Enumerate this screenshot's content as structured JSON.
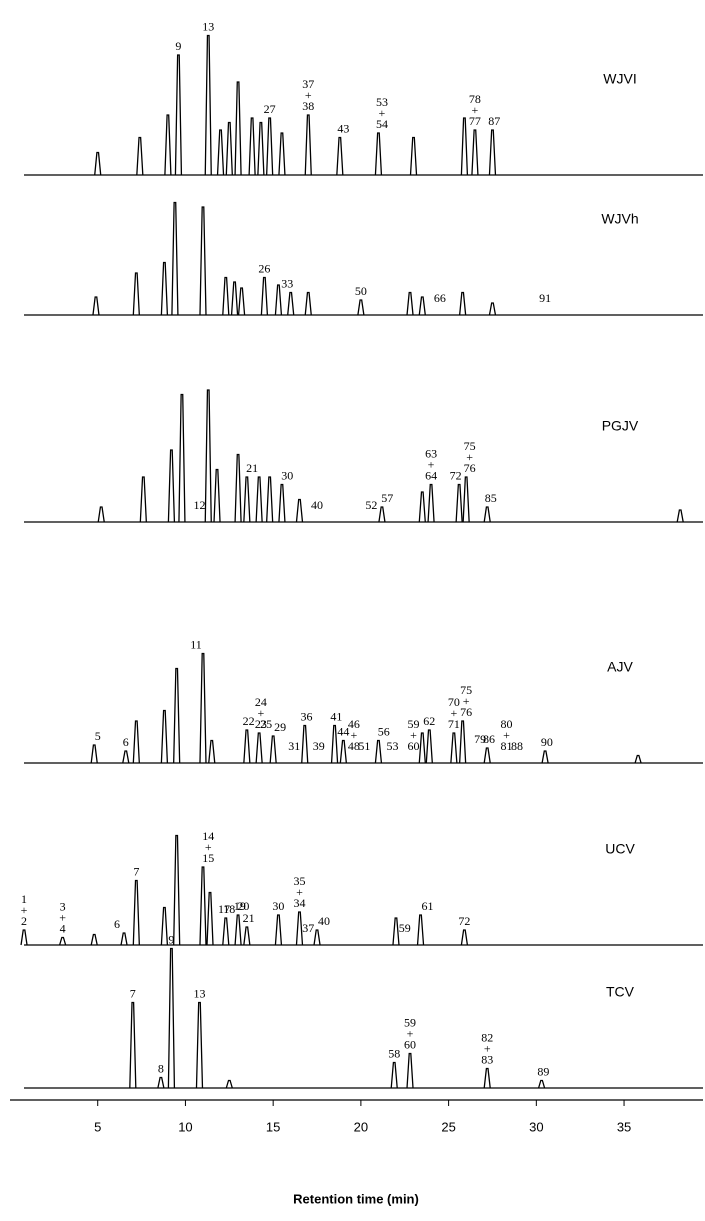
{
  "chart_data": {
    "type": "chromatogram",
    "xlabel": "Retention time (min)",
    "xlim": [
      0,
      39.5
    ],
    "xticks": [
      5,
      10,
      15,
      20,
      25,
      30,
      35
    ],
    "ylim": [
      0,
      100
    ],
    "color": "#000000",
    "panels": [
      {
        "name": "WJVI",
        "peaks": [
          {
            "x": 5.0,
            "height": 15
          },
          {
            "x": 7.4,
            "height": 25
          },
          {
            "x": 9.0,
            "height": 40
          },
          {
            "x": 9.6,
            "height": 80
          },
          {
            "x": 11.3,
            "height": 93
          },
          {
            "x": 12.0,
            "height": 30
          },
          {
            "x": 12.5,
            "height": 35
          },
          {
            "x": 13.0,
            "height": 62
          },
          {
            "x": 13.8,
            "height": 38
          },
          {
            "x": 14.3,
            "height": 35
          },
          {
            "x": 14.8,
            "height": 38
          },
          {
            "x": 15.5,
            "height": 28
          },
          {
            "x": 17.0,
            "height": 40
          },
          {
            "x": 18.8,
            "height": 25
          },
          {
            "x": 21.0,
            "height": 28
          },
          {
            "x": 23.0,
            "height": 25
          },
          {
            "x": 25.9,
            "height": 38
          },
          {
            "x": 26.5,
            "height": 30
          },
          {
            "x": 27.5,
            "height": 30
          }
        ],
        "labels": [
          {
            "x": 9.6,
            "lines": [
              "9"
            ]
          },
          {
            "x": 11.3,
            "lines": [
              "13"
            ]
          },
          {
            "x": 14.8,
            "lines": [
              "27"
            ]
          },
          {
            "x": 17.0,
            "lines": [
              "37",
              "+",
              "38"
            ]
          },
          {
            "x": 19.0,
            "lines": [
              "43"
            ]
          },
          {
            "x": 21.2,
            "lines": [
              "53",
              "+",
              "54"
            ]
          },
          {
            "x": 26.5,
            "lines": [
              "78",
              "+",
              "77"
            ]
          },
          {
            "x": 27.6,
            "lines": [
              "87"
            ]
          }
        ]
      },
      {
        "name": "WJVh",
        "peaks": [
          {
            "x": 4.9,
            "height": 12
          },
          {
            "x": 7.2,
            "height": 28
          },
          {
            "x": 8.8,
            "height": 35
          },
          {
            "x": 9.4,
            "height": 75
          },
          {
            "x": 11.0,
            "height": 72
          },
          {
            "x": 12.3,
            "height": 25
          },
          {
            "x": 12.8,
            "height": 22
          },
          {
            "x": 13.2,
            "height": 18
          },
          {
            "x": 14.5,
            "height": 25
          },
          {
            "x": 15.3,
            "height": 20
          },
          {
            "x": 16.0,
            "height": 15
          },
          {
            "x": 17.0,
            "height": 15
          },
          {
            "x": 20.0,
            "height": 10
          },
          {
            "x": 22.8,
            "height": 15
          },
          {
            "x": 23.5,
            "height": 12
          },
          {
            "x": 25.8,
            "height": 15
          },
          {
            "x": 27.5,
            "height": 8
          }
        ],
        "labels": [
          {
            "x": 14.5,
            "lines": [
              "26"
            ]
          },
          {
            "x": 15.8,
            "lines": [
              "33"
            ]
          },
          {
            "x": 20.0,
            "lines": [
              "50"
            ]
          },
          {
            "x": 24.5,
            "lines": [
              "66"
            ]
          },
          {
            "x": 30.5,
            "lines": [
              "91"
            ]
          }
        ]
      },
      {
        "name": "PGJV",
        "peaks": [
          {
            "x": 5.2,
            "height": 10
          },
          {
            "x": 7.6,
            "height": 30
          },
          {
            "x": 9.2,
            "height": 48
          },
          {
            "x": 9.8,
            "height": 85
          },
          {
            "x": 11.3,
            "height": 88
          },
          {
            "x": 11.8,
            "height": 35
          },
          {
            "x": 13.0,
            "height": 45
          },
          {
            "x": 13.5,
            "height": 30
          },
          {
            "x": 14.2,
            "height": 30
          },
          {
            "x": 14.8,
            "height": 30
          },
          {
            "x": 15.5,
            "height": 25
          },
          {
            "x": 16.5,
            "height": 15
          },
          {
            "x": 21.2,
            "height": 10
          },
          {
            "x": 23.5,
            "height": 20
          },
          {
            "x": 24.0,
            "height": 25
          },
          {
            "x": 25.6,
            "height": 25
          },
          {
            "x": 26.0,
            "height": 30
          },
          {
            "x": 27.2,
            "height": 10
          },
          {
            "x": 38.2,
            "height": 8
          }
        ],
        "labels": [
          {
            "x": 10.8,
            "lines": [
              "12"
            ]
          },
          {
            "x": 13.8,
            "lines": [
              "21"
            ]
          },
          {
            "x": 15.8,
            "lines": [
              "30"
            ]
          },
          {
            "x": 17.5,
            "lines": [
              "40"
            ]
          },
          {
            "x": 20.6,
            "lines": [
              "52"
            ]
          },
          {
            "x": 21.5,
            "lines": [
              "57"
            ]
          },
          {
            "x": 24.0,
            "lines": [
              "63",
              "+",
              "64"
            ]
          },
          {
            "x": 25.4,
            "lines": [
              "72"
            ]
          },
          {
            "x": 26.2,
            "lines": [
              "75",
              "+",
              "76"
            ]
          },
          {
            "x": 27.4,
            "lines": [
              "85"
            ]
          }
        ]
      },
      {
        "name": "AJV",
        "peaks": [
          {
            "x": 4.8,
            "height": 12
          },
          {
            "x": 6.6,
            "height": 8
          },
          {
            "x": 7.2,
            "height": 28
          },
          {
            "x": 8.8,
            "height": 35
          },
          {
            "x": 9.5,
            "height": 63
          },
          {
            "x": 11.0,
            "height": 73
          },
          {
            "x": 11.5,
            "height": 15
          },
          {
            "x": 13.5,
            "height": 22
          },
          {
            "x": 14.2,
            "height": 20
          },
          {
            "x": 15.0,
            "height": 18
          },
          {
            "x": 16.8,
            "height": 25
          },
          {
            "x": 18.5,
            "height": 25
          },
          {
            "x": 19.0,
            "height": 15
          },
          {
            "x": 21.0,
            "height": 15
          },
          {
            "x": 23.5,
            "height": 20
          },
          {
            "x": 23.9,
            "height": 22
          },
          {
            "x": 25.3,
            "height": 20
          },
          {
            "x": 25.8,
            "height": 28
          },
          {
            "x": 27.2,
            "height": 10
          },
          {
            "x": 30.5,
            "height": 8
          },
          {
            "x": 35.8,
            "height": 5
          }
        ],
        "labels": [
          {
            "x": 5.0,
            "lines": [
              "5"
            ]
          },
          {
            "x": 6.6,
            "lines": [
              "6"
            ]
          },
          {
            "x": 10.6,
            "lines": [
              "11"
            ]
          },
          {
            "x": 13.6,
            "lines": [
              "22"
            ]
          },
          {
            "x": 14.3,
            "lines": [
              "24",
              "+",
              "23"
            ]
          },
          {
            "x": 14.6,
            "lines": [
              "25"
            ]
          },
          {
            "x": 15.4,
            "lines": [
              "29"
            ]
          },
          {
            "x": 16.2,
            "lines": [
              "31"
            ]
          },
          {
            "x": 16.9,
            "lines": [
              "36"
            ]
          },
          {
            "x": 17.6,
            "lines": [
              "39"
            ]
          },
          {
            "x": 18.6,
            "lines": [
              "41"
            ]
          },
          {
            "x": 19.0,
            "lines": [
              "44"
            ]
          },
          {
            "x": 19.6,
            "lines": [
              "46",
              "+",
              "48"
            ]
          },
          {
            "x": 20.2,
            "lines": [
              "51"
            ]
          },
          {
            "x": 21.3,
            "lines": [
              "56"
            ]
          },
          {
            "x": 21.8,
            "lines": [
              "53"
            ]
          },
          {
            "x": 23.0,
            "lines": [
              "59",
              "+",
              "60"
            ]
          },
          {
            "x": 23.9,
            "lines": [
              "62"
            ]
          },
          {
            "x": 25.3,
            "lines": [
              "70",
              "+",
              "71"
            ]
          },
          {
            "x": 26.0,
            "lines": [
              "75",
              "+",
              "76"
            ]
          },
          {
            "x": 26.8,
            "lines": [
              "79"
            ]
          },
          {
            "x": 27.3,
            "lines": [
              "86"
            ]
          },
          {
            "x": 28.3,
            "lines": [
              "80",
              "+",
              "81"
            ]
          },
          {
            "x": 28.9,
            "lines": [
              "88"
            ]
          },
          {
            "x": 30.6,
            "lines": [
              "90"
            ]
          }
        ]
      },
      {
        "name": "UCV",
        "peaks": [
          {
            "x": 0.8,
            "height": 10
          },
          {
            "x": 3.0,
            "height": 5
          },
          {
            "x": 4.8,
            "height": 7
          },
          {
            "x": 6.5,
            "height": 8
          },
          {
            "x": 7.2,
            "height": 43
          },
          {
            "x": 8.8,
            "height": 25
          },
          {
            "x": 9.5,
            "height": 73
          },
          {
            "x": 11.0,
            "height": 52
          },
          {
            "x": 11.4,
            "height": 35
          },
          {
            "x": 12.3,
            "height": 18
          },
          {
            "x": 13.0,
            "height": 20
          },
          {
            "x": 13.5,
            "height": 12
          },
          {
            "x": 15.3,
            "height": 20
          },
          {
            "x": 16.5,
            "height": 22
          },
          {
            "x": 17.5,
            "height": 10
          },
          {
            "x": 22.0,
            "height": 18
          },
          {
            "x": 23.4,
            "height": 20
          },
          {
            "x": 25.9,
            "height": 10
          }
        ],
        "labels": [
          {
            "x": 0.8,
            "lines": [
              "1",
              "+",
              "2"
            ]
          },
          {
            "x": 3.0,
            "lines": [
              "3",
              "+",
              "4"
            ]
          },
          {
            "x": 6.1,
            "lines": [
              "6"
            ]
          },
          {
            "x": 7.2,
            "lines": [
              "7"
            ]
          },
          {
            "x": 11.3,
            "lines": [
              "14",
              "+",
              "15"
            ]
          },
          {
            "x": 12.2,
            "lines": [
              "17"
            ]
          },
          {
            "x": 12.5,
            "lines": [
              "18"
            ]
          },
          {
            "x": 13.1,
            "lines": [
              "19"
            ]
          },
          {
            "x": 13.3,
            "lines": [
              "20"
            ]
          },
          {
            "x": 13.6,
            "lines": [
              "21"
            ]
          },
          {
            "x": 15.3,
            "lines": [
              "30"
            ]
          },
          {
            "x": 16.5,
            "lines": [
              "35",
              "+",
              "34"
            ]
          },
          {
            "x": 17.0,
            "lines": [
              "37"
            ]
          },
          {
            "x": 17.9,
            "lines": [
              "40"
            ]
          },
          {
            "x": 22.5,
            "lines": [
              "59"
            ]
          },
          {
            "x": 23.8,
            "lines": [
              "61"
            ]
          },
          {
            "x": 25.9,
            "lines": [
              "72"
            ]
          }
        ]
      },
      {
        "name": "TCV",
        "peaks": [
          {
            "x": 7.0,
            "height": 57
          },
          {
            "x": 8.6,
            "height": 7
          },
          {
            "x": 9.2,
            "height": 93
          },
          {
            "x": 10.8,
            "height": 57
          },
          {
            "x": 12.5,
            "height": 5
          },
          {
            "x": 21.9,
            "height": 17
          },
          {
            "x": 22.8,
            "height": 23
          },
          {
            "x": 27.2,
            "height": 13
          },
          {
            "x": 30.3,
            "height": 5
          }
        ],
        "labels": [
          {
            "x": 7.0,
            "lines": [
              "7"
            ]
          },
          {
            "x": 8.6,
            "lines": [
              "8"
            ]
          },
          {
            "x": 9.2,
            "lines": [
              "9"
            ]
          },
          {
            "x": 10.8,
            "lines": [
              "13"
            ]
          },
          {
            "x": 21.9,
            "lines": [
              "58"
            ]
          },
          {
            "x": 22.8,
            "lines": [
              "59",
              "+",
              "60"
            ]
          },
          {
            "x": 27.2,
            "lines": [
              "82",
              "+",
              "83"
            ]
          },
          {
            "x": 30.4,
            "lines": [
              "89"
            ]
          }
        ]
      }
    ]
  }
}
